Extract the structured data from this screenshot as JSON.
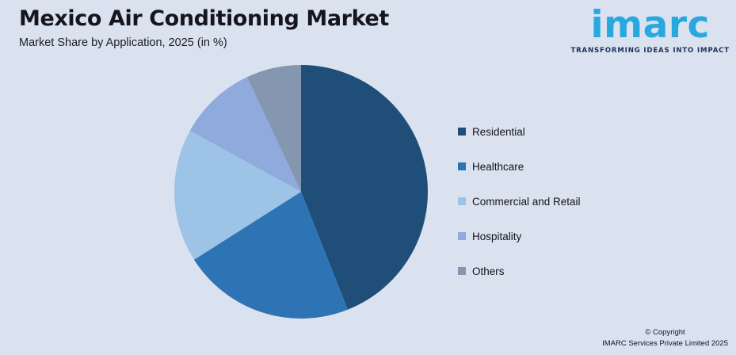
{
  "page": {
    "background": "#DAE2F0"
  },
  "header": {
    "title": "Mexico Air Conditioning Market",
    "subtitle": "Market Share by Application, 2025 (in %)"
  },
  "logo": {
    "brand": "imarc",
    "tagline": "TRANSFORMING IDEAS INTO IMPACT",
    "brand_color": "#29A8E0",
    "tagline_color": "#20335B"
  },
  "chart_data": {
    "type": "pie",
    "title": "Mexico Air Conditioning Market",
    "subtitle": "Market Share by Application, 2025 (in %)",
    "unit": "%",
    "categories": [
      "Residential",
      "Healthcare",
      "Commercial and Retail",
      "Hospitality",
      "Others"
    ],
    "values": [
      44,
      22,
      17,
      10,
      7
    ],
    "colors": [
      "#1F4E79",
      "#2E74B5",
      "#9DC3E6",
      "#8FAADC",
      "#8496B0"
    ],
    "start_angle_deg": 0,
    "direction": "clockwise",
    "legend_position": "right",
    "data_labels": false
  },
  "footer": {
    "copyright_line1": "© Copyright",
    "copyright_line2": "IMARC Services Private Limited 2025"
  }
}
